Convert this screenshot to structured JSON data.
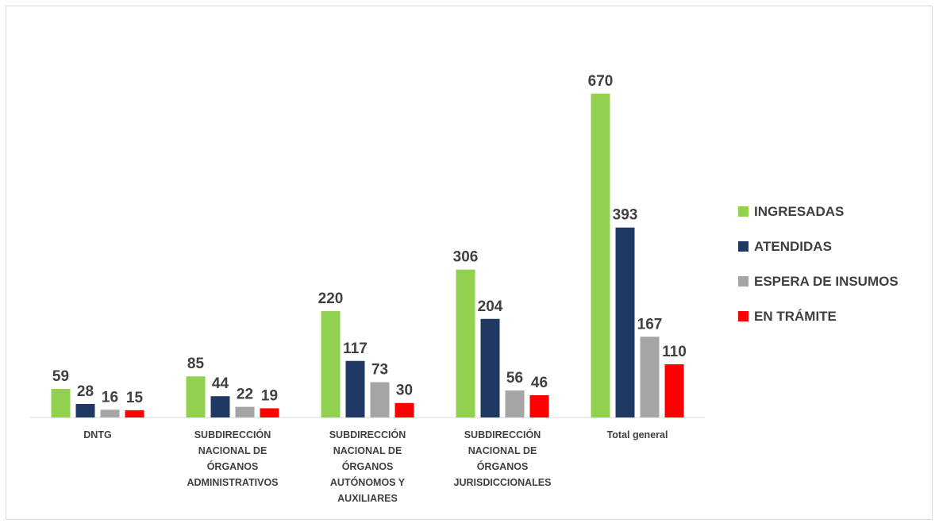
{
  "chart_data": {
    "type": "bar",
    "categories": [
      [
        "DNTG"
      ],
      [
        "SUBDIRECCIÓN",
        "NACIONAL DE",
        "ÓRGANOS",
        "ADMINISTRATIVOS"
      ],
      [
        "SUBDIRECCIÓN",
        "NACIONAL DE",
        "ÓRGANOS",
        "AUTÓNOMOS Y",
        "AUXILIARES"
      ],
      [
        "SUBDIRECCIÓN",
        "NACIONAL DE",
        "ÓRGANOS",
        "JURISDICCIONALES"
      ],
      [
        "Total general"
      ]
    ],
    "series": [
      {
        "name": "INGRESADAS",
        "color": "#92d050",
        "values": [
          59,
          85,
          220,
          306,
          670
        ]
      },
      {
        "name": "ATENDIDAS",
        "color": "#1f3864",
        "values": [
          28,
          44,
          117,
          204,
          393
        ]
      },
      {
        "name": "ESPERA DE INSUMOS",
        "color": "#a5a5a5",
        "values": [
          16,
          22,
          73,
          56,
          167
        ]
      },
      {
        "name": "EN TRÁMITE",
        "color": "#ff0000",
        "values": [
          15,
          19,
          30,
          46,
          110
        ]
      }
    ],
    "ylim": [
      0,
      670
    ],
    "grid": false,
    "legend_position": "right",
    "data_labels": true
  }
}
